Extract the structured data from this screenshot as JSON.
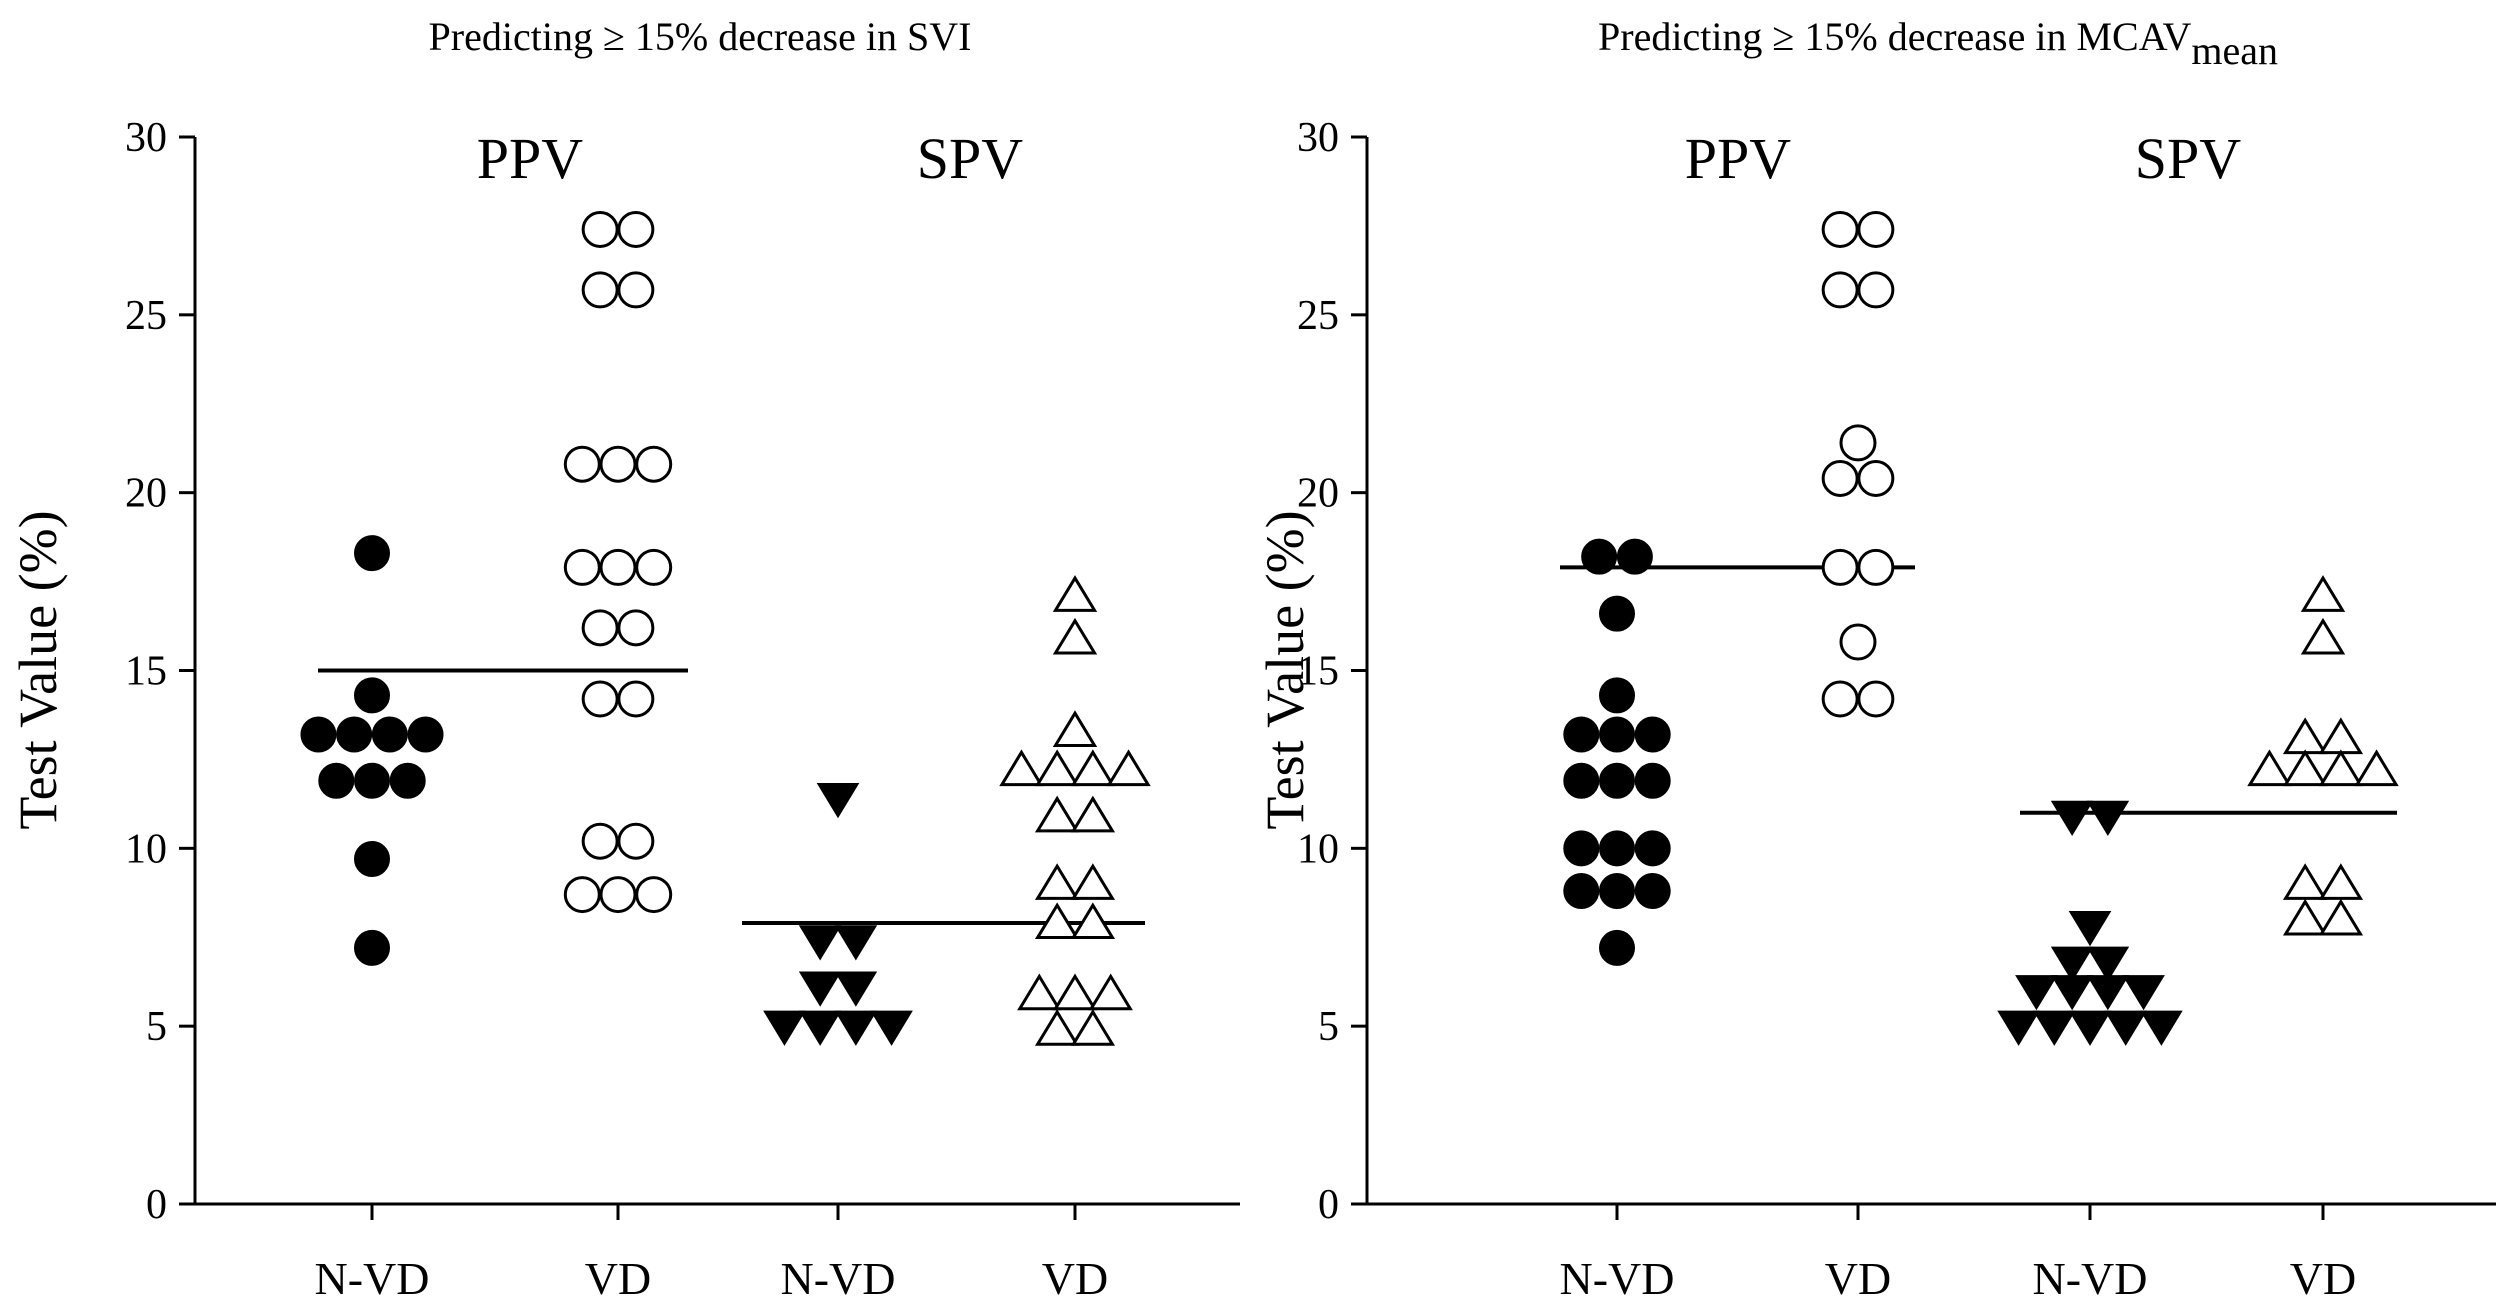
{
  "chart_data": [
    {
      "type": "scatter",
      "title": "Predicting ≥ 15%  decrease in SVI",
      "ylabel": "Test Value (%)",
      "ylim": [
        0,
        30
      ],
      "yticks": [
        0,
        5,
        10,
        15,
        20,
        25,
        30
      ],
      "categories": [
        "N-VD",
        "VD",
        "N-VD",
        "VD"
      ],
      "groups": [
        {
          "label": "PPV",
          "categories": [
            0,
            1
          ],
          "cutoff": 15.0
        },
        {
          "label": "SPV",
          "categories": [
            2,
            3
          ],
          "cutoff": 7.9
        }
      ],
      "series": [
        {
          "name": "PPV N-VD",
          "category": 0,
          "marker": "filled-circle",
          "values": [
            18.3,
            14.3,
            13.2,
            13.2,
            13.2,
            13.2,
            11.9,
            11.9,
            11.9,
            9.7,
            7.2
          ]
        },
        {
          "name": "PPV VD",
          "category": 1,
          "marker": "open-circle",
          "values": [
            27.4,
            27.4,
            25.7,
            25.7,
            20.8,
            20.8,
            20.8,
            17.9,
            17.9,
            17.9,
            16.2,
            16.2,
            14.2,
            14.2,
            10.2,
            10.2,
            8.7,
            8.7,
            8.7
          ]
        },
        {
          "name": "SPV N-VD",
          "category": 2,
          "marker": "filled-triangle-down",
          "values": [
            11.4,
            7.4,
            7.4,
            6.1,
            6.1,
            5.0,
            5.0,
            5.0,
            5.0
          ]
        },
        {
          "name": "SPV VD",
          "category": 3,
          "marker": "open-triangle-up",
          "values": [
            17.1,
            15.9,
            13.3,
            12.2,
            12.2,
            12.2,
            12.2,
            10.9,
            10.9,
            9.0,
            9.0,
            7.9,
            7.9,
            5.9,
            5.9,
            5.9,
            4.9,
            4.9
          ]
        }
      ]
    },
    {
      "type": "scatter",
      "title": "Predicting ≥ 15%  decrease in MCAV",
      "title_subscript": "mean",
      "ylabel": "Test Value (%)",
      "ylim": [
        0,
        30
      ],
      "yticks": [
        0,
        5,
        10,
        15,
        20,
        25,
        30
      ],
      "categories": [
        "N-VD",
        "VD",
        "N-VD",
        "VD"
      ],
      "groups": [
        {
          "label": "PPV",
          "categories": [
            0,
            1
          ],
          "cutoff": 17.9
        },
        {
          "label": "SPV",
          "categories": [
            2,
            3
          ],
          "cutoff": 11.0
        }
      ],
      "series": [
        {
          "name": "PPV N-VD",
          "category": 0,
          "marker": "filled-circle",
          "values": [
            18.2,
            18.2,
            16.6,
            14.3,
            13.2,
            13.2,
            13.2,
            11.9,
            11.9,
            11.9,
            10.0,
            10.0,
            10.0,
            8.8,
            8.8,
            8.8,
            7.2
          ]
        },
        {
          "name": "PPV VD",
          "category": 1,
          "marker": "open-circle",
          "values": [
            27.4,
            27.4,
            25.7,
            25.7,
            21.4,
            20.4,
            20.4,
            17.9,
            17.9,
            15.8,
            14.2,
            14.2
          ]
        },
        {
          "name": "SPV N-VD",
          "category": 2,
          "marker": "filled-triangle-down",
          "values": [
            10.9,
            10.9,
            7.8,
            6.8,
            6.8,
            6.0,
            6.0,
            6.0,
            6.0,
            5.0,
            5.0,
            5.0,
            5.0,
            5.0
          ]
        },
        {
          "name": "SPV VD",
          "category": 3,
          "marker": "open-triangle-up",
          "values": [
            17.1,
            15.9,
            13.1,
            13.1,
            12.2,
            12.2,
            12.2,
            12.2,
            9.0,
            9.0,
            8.0,
            8.0
          ]
        }
      ]
    }
  ]
}
